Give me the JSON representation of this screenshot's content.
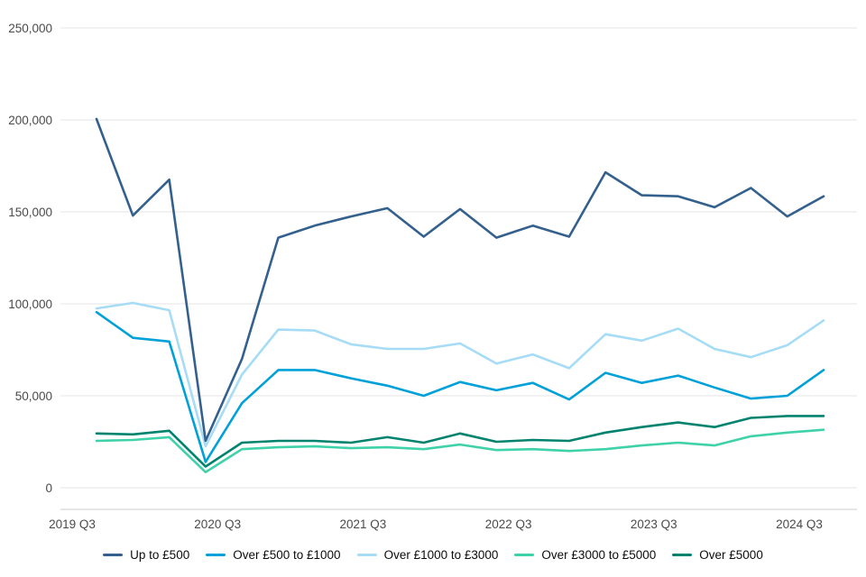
{
  "chart_data": {
    "type": "line",
    "quarters": [
      "2019 Q3",
      "2019 Q4",
      "2020 Q1",
      "2020 Q2",
      "2020 Q3",
      "2020 Q4",
      "2021 Q1",
      "2021 Q2",
      "2021 Q3",
      "2021 Q4",
      "2022 Q1",
      "2022 Q2",
      "2022 Q3",
      "2022 Q4",
      "2023 Q1",
      "2023 Q2",
      "2023 Q3",
      "2023 Q4",
      "2024 Q1",
      "2024 Q2",
      "2024 Q3"
    ],
    "x_tick_labels": [
      "2019 Q3",
      "2020 Q3",
      "2021 Q3",
      "2022 Q3",
      "2023 Q3",
      "2024 Q3"
    ],
    "y_ticks": [
      0,
      50000,
      100000,
      150000,
      200000,
      250000
    ],
    "y_tick_labels": [
      "0",
      "50,000",
      "100,000",
      "150,000",
      "200,000",
      "250,000"
    ],
    "ylim": [
      0,
      250000
    ],
    "grid": "horizontal",
    "legend_position": "bottom",
    "series": [
      {
        "name": "Up to £500",
        "color": "#33608C",
        "values": [
          200500,
          148000,
          167500,
          25500,
          70000,
          136000,
          142500,
          147500,
          152000,
          136500,
          151500,
          136000,
          142500,
          136500,
          171500,
          159000,
          158500,
          152500,
          163000,
          147500,
          158500
        ]
      },
      {
        "name": "Over £500 to £1000",
        "color": "#00A1D8",
        "values": [
          95500,
          81500,
          79500,
          14000,
          46000,
          64000,
          64000,
          59500,
          55500,
          50000,
          57500,
          53000,
          57000,
          48000,
          62500,
          57000,
          61000,
          54500,
          48500,
          50000,
          64000
        ]
      },
      {
        "name": "Over £1000 to £3000",
        "color": "#A6DCF5",
        "values": [
          97500,
          100500,
          96500,
          22500,
          61500,
          86000,
          85500,
          78000,
          75500,
          75500,
          78500,
          67500,
          72500,
          65000,
          83500,
          80000,
          86500,
          75500,
          71000,
          77500,
          91000
        ]
      },
      {
        "name": "Over £3000 to £5000",
        "color": "#3FD2A9",
        "values": [
          25500,
          26000,
          27500,
          8500,
          21000,
          22000,
          22500,
          21500,
          22000,
          21000,
          23500,
          20500,
          21000,
          20000,
          21000,
          23000,
          24500,
          23000,
          28000,
          30000,
          31500
        ]
      },
      {
        "name": "Over £5000",
        "color": "#00836E",
        "values": [
          29500,
          29000,
          31000,
          11500,
          24500,
          25500,
          25500,
          24500,
          27500,
          24500,
          29500,
          25000,
          26000,
          25500,
          30000,
          33000,
          35500,
          33000,
          38000,
          39000,
          39000
        ]
      }
    ]
  },
  "colors": {
    "grid_line": "#E6E6E6",
    "axis_line": "#CCCCCC",
    "tick_text": "#4A4A4A",
    "legend_text": "#0B0C0C",
    "background": "#FFFFFF"
  }
}
